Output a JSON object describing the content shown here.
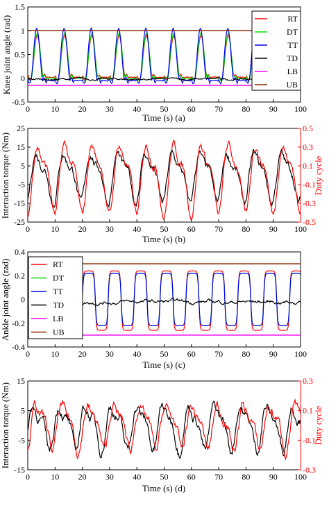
{
  "colors": {
    "RT": "#ff0000",
    "DT": "#00dd00",
    "TT": "#0000ee",
    "TD": "#000000",
    "LB": "#ee00ee",
    "UB": "#8b2500",
    "duty_axis": "#ff0000"
  },
  "chart_data": [
    {
      "type": "line",
      "xlabel": "Time (s) (a)",
      "ylabel": "Knee joint angle (rad)",
      "xlim": [
        0,
        100
      ],
      "ylim": [
        -0.5,
        1.5
      ],
      "xticks": [
        "0",
        "10",
        "20",
        "30",
        "40",
        "50",
        "60",
        "70",
        "80",
        "90",
        "100"
      ],
      "yticks": [
        "-0.5",
        "0",
        "0.5",
        "1",
        "1.5"
      ],
      "legend_position": "top-right",
      "series": [
        {
          "name": "RT",
          "color_key": "RT",
          "kind": "knee_peaks",
          "values": {
            "period": 10,
            "first_peak": 3.5,
            "peak": 0.9,
            "trough": 0.02,
            "x_end": 83
          }
        },
        {
          "name": "DT",
          "color_key": "DT",
          "kind": "knee_peaks",
          "values": {
            "period": 10,
            "first_peak": 3.5,
            "peak": 0.95,
            "trough": 0.0,
            "x_end": 83
          }
        },
        {
          "name": "TT",
          "color_key": "TT",
          "kind": "knee_peaks",
          "values": {
            "period": 10,
            "first_peak": 3.3,
            "peak": 1.05,
            "trough": -0.05,
            "x_end": 83
          }
        },
        {
          "name": "TD",
          "color_key": "TD",
          "kind": "noise",
          "values": {
            "mean": -0.02,
            "amp": 0.08,
            "x_end": 100
          }
        },
        {
          "name": "LB",
          "color_key": "LB",
          "kind": "hline",
          "values": {
            "y": -0.15
          }
        },
        {
          "name": "UB",
          "color_key": "UB",
          "kind": "hline",
          "values": {
            "y": 1.0
          }
        }
      ]
    },
    {
      "type": "line",
      "xlabel": "Time (s) (b)",
      "ylabel": "Interaction torque (Nm)",
      "y2label": "Duty cycle",
      "xlim": [
        0,
        100
      ],
      "ylim": [
        -25,
        25
      ],
      "y2lim": [
        -0.5,
        0.5
      ],
      "xticks": [
        "0",
        "10",
        "20",
        "30",
        "40",
        "50",
        "60",
        "70",
        "80",
        "90",
        "100"
      ],
      "yticks": [
        "-25",
        "-15",
        "-5",
        "5",
        "15",
        "25"
      ],
      "y2ticks": [
        "-0.5",
        "-0.3",
        "-0.1",
        "0.1",
        "0.3",
        "0.5"
      ],
      "series": [
        {
          "color_key": "TD",
          "axis": "left",
          "kind": "torque",
          "values": {
            "period": 10,
            "amp": 14,
            "phase": 1.5,
            "noise": 3
          }
        },
        {
          "color_key": "RT",
          "axis": "right",
          "kind": "duty",
          "values": {
            "period": 10,
            "amp": 0.4,
            "phase": 2.0,
            "noise": 0.06
          }
        }
      ]
    },
    {
      "type": "line",
      "xlabel": "Time (s) (c)",
      "ylabel": "Ankle joint angle (rad)",
      "xlim": [
        0,
        100
      ],
      "ylim": [
        -0.4,
        0.4
      ],
      "xticks": [
        "0",
        "10",
        "20",
        "30",
        "40",
        "50",
        "60",
        "70",
        "80",
        "90",
        "100"
      ],
      "yticks": [
        "-0.4",
        "-0.2",
        "0",
        "0.2",
        "0.4"
      ],
      "legend_position": "top-left",
      "series": [
        {
          "name": "RT",
          "color_key": "RT",
          "kind": "ankle_square",
          "values": {
            "period": 9.5,
            "start": 20,
            "high": 0.24,
            "low": -0.26,
            "x_end": 100
          }
        },
        {
          "name": "DT",
          "color_key": "DT",
          "kind": "ankle_square",
          "values": {
            "period": 9.5,
            "start": 20,
            "high": 0.22,
            "low": -0.22,
            "x_end": 100
          }
        },
        {
          "name": "TT",
          "color_key": "TT",
          "kind": "ankle_square",
          "values": {
            "period": 9.5,
            "start": 20,
            "high": 0.22,
            "low": -0.22,
            "x_end": 100
          }
        },
        {
          "name": "TD",
          "color_key": "TD",
          "kind": "noise",
          "values": {
            "mean": -0.02,
            "amp": 0.06,
            "x_end": 100
          }
        },
        {
          "name": "LB",
          "color_key": "LB",
          "kind": "hline",
          "values": {
            "y": -0.3
          }
        },
        {
          "name": "UB",
          "color_key": "UB",
          "kind": "hline",
          "values": {
            "y": 0.3
          }
        }
      ]
    },
    {
      "type": "line",
      "xlabel": "Time (s) (d)",
      "ylabel": "Interaction torque (Nm)",
      "y2label": "Duty cycle",
      "xlim": [
        0,
        100
      ],
      "ylim": [
        -15,
        15
      ],
      "y2lim": [
        -0.3,
        0.3
      ],
      "xticks": [
        "0",
        "10",
        "20",
        "30",
        "40",
        "50",
        "60",
        "70",
        "80",
        "90",
        "100"
      ],
      "yticks": [
        "-15",
        "-5",
        "5",
        "15"
      ],
      "y2ticks": [
        "-0.3",
        "-0.1",
        "0.1",
        "0.3"
      ],
      "series": [
        {
          "color_key": "TD",
          "axis": "left",
          "kind": "torque",
          "values": {
            "period": 9.5,
            "amp": 8,
            "phase": 0.5,
            "noise": 2.5
          }
        },
        {
          "color_key": "RT",
          "axis": "right",
          "kind": "duty",
          "values": {
            "period": 9.5,
            "amp": 0.16,
            "phase": 1.5,
            "noise": 0.05
          }
        }
      ]
    }
  ]
}
